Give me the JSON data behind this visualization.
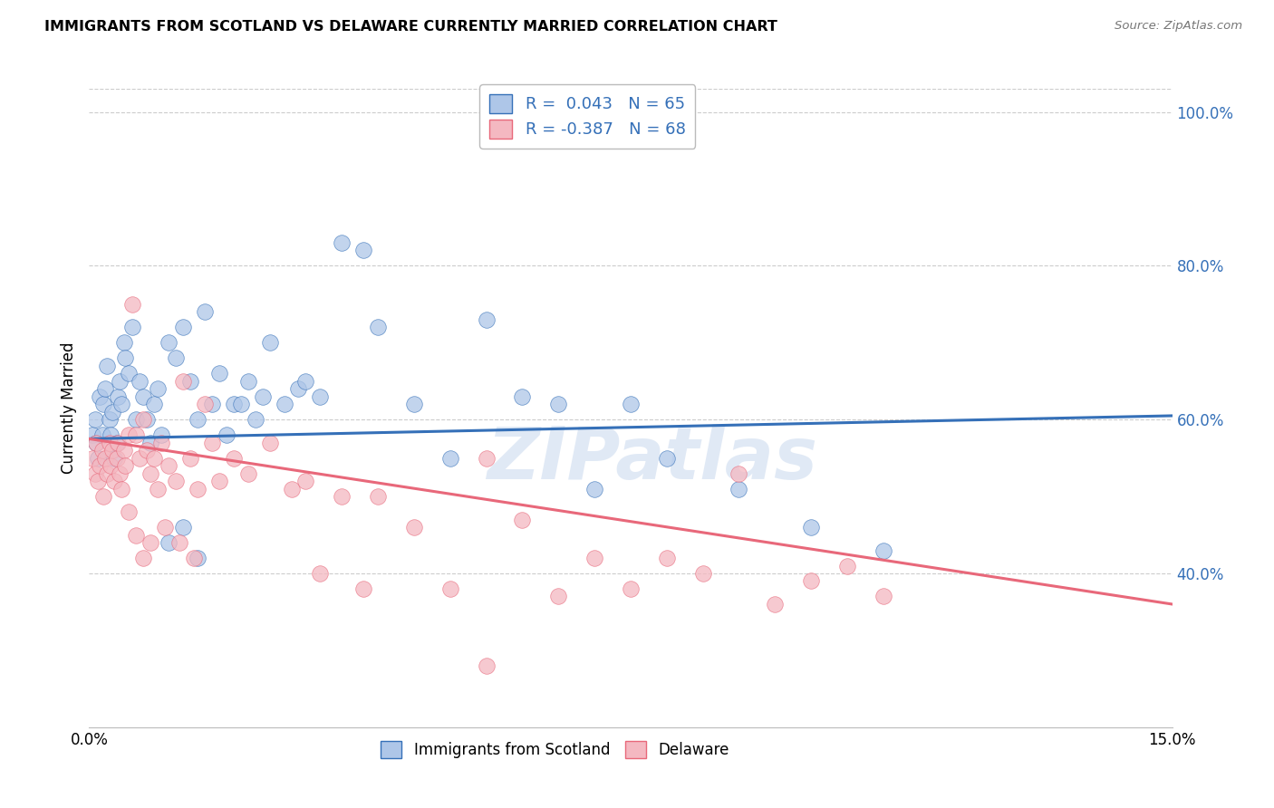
{
  "title": "IMMIGRANTS FROM SCOTLAND VS DELAWARE CURRENTLY MARRIED CORRELATION CHART",
  "source": "Source: ZipAtlas.com",
  "ylabel": "Currently Married",
  "xlim": [
    0.0,
    15.0
  ],
  "ylim": [
    20.0,
    103.0
  ],
  "yticks": [
    40.0,
    60.0,
    80.0,
    100.0
  ],
  "ytick_labels": [
    "40.0%",
    "60.0%",
    "80.0%",
    "100.0%"
  ],
  "xticks": [
    0.0,
    3.0,
    6.0,
    9.0,
    12.0,
    15.0
  ],
  "xtick_labels": [
    "0.0%",
    "",
    "",
    "",
    "",
    "15.0%"
  ],
  "color_scotland": "#aec6e8",
  "color_delaware": "#f4b8c1",
  "line_color_scotland": "#3570b8",
  "line_color_delaware": "#e8687a",
  "watermark": "ZIPatlas",
  "scotland_R": 0.043,
  "scotland_N": 65,
  "delaware_R": -0.387,
  "delaware_N": 68,
  "scotland_x": [
    0.05,
    0.08,
    0.1,
    0.12,
    0.15,
    0.18,
    0.2,
    0.22,
    0.25,
    0.28,
    0.3,
    0.32,
    0.35,
    0.38,
    0.4,
    0.42,
    0.45,
    0.48,
    0.5,
    0.55,
    0.6,
    0.65,
    0.7,
    0.75,
    0.8,
    0.85,
    0.9,
    0.95,
    1.0,
    1.1,
    1.2,
    1.3,
    1.4,
    1.5,
    1.6,
    1.7,
    1.8,
    1.9,
    2.0,
    2.2,
    2.4,
    2.5,
    2.7,
    2.9,
    3.0,
    3.2,
    3.5,
    3.8,
    4.0,
    4.5,
    5.0,
    5.5,
    6.0,
    6.5,
    7.0,
    7.5,
    8.0,
    9.0,
    10.0,
    11.0,
    1.1,
    1.3,
    1.5,
    2.1,
    2.3
  ],
  "scotland_y": [
    58.0,
    60.0,
    57.0,
    55.0,
    63.0,
    58.0,
    62.0,
    64.0,
    67.0,
    60.0,
    58.0,
    61.0,
    55.0,
    57.0,
    63.0,
    65.0,
    62.0,
    70.0,
    68.0,
    66.0,
    72.0,
    60.0,
    65.0,
    63.0,
    60.0,
    57.0,
    62.0,
    64.0,
    58.0,
    70.0,
    68.0,
    72.0,
    65.0,
    60.0,
    74.0,
    62.0,
    66.0,
    58.0,
    62.0,
    65.0,
    63.0,
    70.0,
    62.0,
    64.0,
    65.0,
    63.0,
    83.0,
    82.0,
    72.0,
    62.0,
    55.0,
    73.0,
    63.0,
    62.0,
    51.0,
    62.0,
    55.0,
    51.0,
    46.0,
    43.0,
    44.0,
    46.0,
    42.0,
    62.0,
    60.0
  ],
  "delaware_x": [
    0.05,
    0.08,
    0.1,
    0.12,
    0.15,
    0.18,
    0.2,
    0.22,
    0.25,
    0.28,
    0.3,
    0.32,
    0.35,
    0.38,
    0.4,
    0.42,
    0.45,
    0.48,
    0.5,
    0.55,
    0.6,
    0.65,
    0.7,
    0.75,
    0.8,
    0.85,
    0.9,
    0.95,
    1.0,
    1.1,
    1.2,
    1.3,
    1.4,
    1.5,
    1.6,
    1.7,
    1.8,
    2.0,
    2.2,
    2.5,
    2.8,
    3.0,
    3.2,
    3.5,
    3.8,
    4.0,
    4.5,
    5.0,
    5.5,
    6.0,
    6.5,
    7.0,
    7.5,
    8.0,
    8.5,
    9.0,
    9.5,
    10.0,
    10.5,
    11.0,
    0.55,
    0.65,
    0.75,
    0.85,
    1.05,
    1.25,
    1.45,
    5.5
  ],
  "delaware_y": [
    55.0,
    53.0,
    57.0,
    52.0,
    54.0,
    56.0,
    50.0,
    55.0,
    53.0,
    57.0,
    54.0,
    56.0,
    52.0,
    55.0,
    57.0,
    53.0,
    51.0,
    56.0,
    54.0,
    58.0,
    75.0,
    58.0,
    55.0,
    60.0,
    56.0,
    53.0,
    55.0,
    51.0,
    57.0,
    54.0,
    52.0,
    65.0,
    55.0,
    51.0,
    62.0,
    57.0,
    52.0,
    55.0,
    53.0,
    57.0,
    51.0,
    52.0,
    40.0,
    50.0,
    38.0,
    50.0,
    46.0,
    38.0,
    55.0,
    47.0,
    37.0,
    42.0,
    38.0,
    42.0,
    40.0,
    53.0,
    36.0,
    39.0,
    41.0,
    37.0,
    48.0,
    45.0,
    42.0,
    44.0,
    46.0,
    44.0,
    42.0,
    28.0
  ],
  "sc_line_x0": 0.0,
  "sc_line_y0": 57.5,
  "sc_line_x1": 15.0,
  "sc_line_y1": 60.5,
  "de_line_x0": 0.0,
  "de_line_y0": 57.5,
  "de_line_x1": 15.0,
  "de_line_y1": 36.0
}
